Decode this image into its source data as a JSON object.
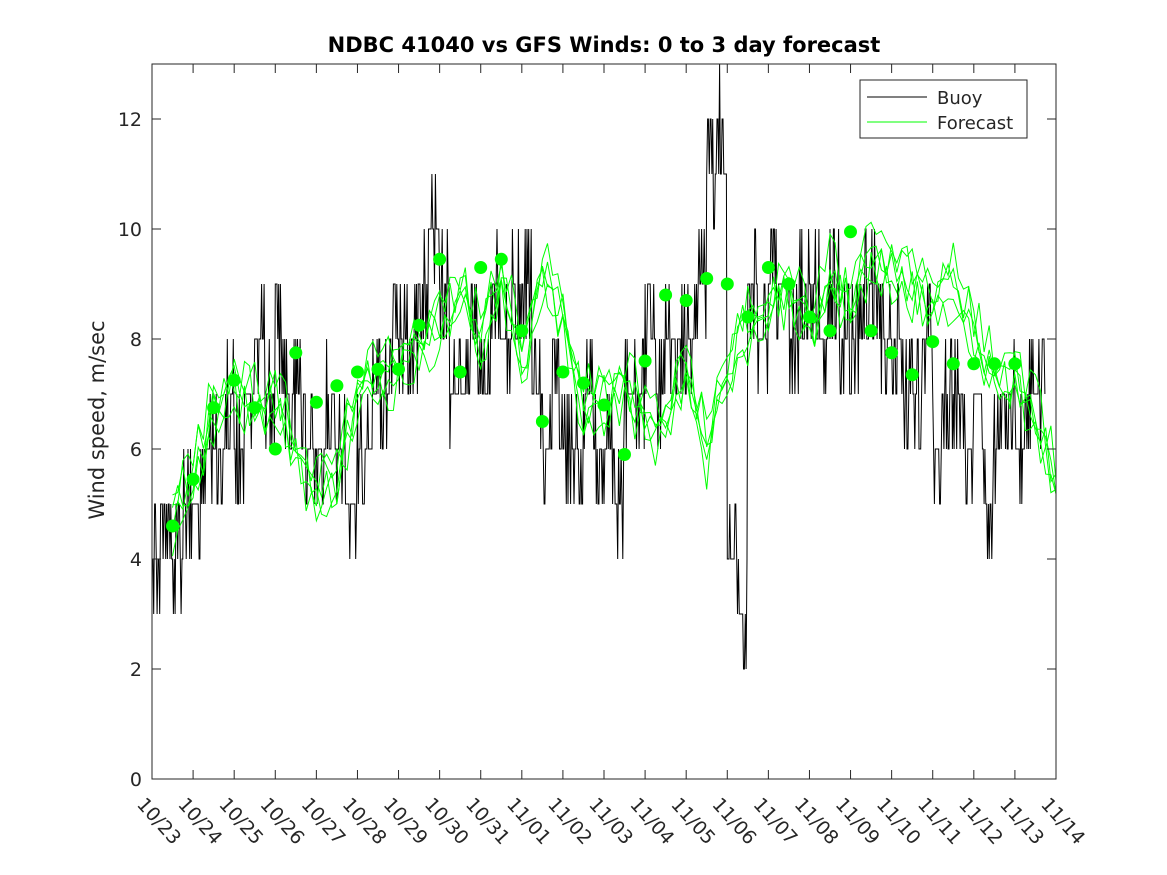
{
  "chart_data": {
    "type": "line",
    "title": "NDBC 41040 vs GFS Winds: 0 to 3 day forecast",
    "ylabel": "Wind speed, m/sec",
    "xlabel": "",
    "xlim": [
      0,
      22
    ],
    "ylim": [
      0,
      13
    ],
    "yticks": [
      0,
      2,
      4,
      6,
      8,
      10,
      12
    ],
    "xtick_labels": [
      "10/23",
      "10/24",
      "10/25",
      "10/26",
      "10/27",
      "10/28",
      "10/29",
      "10/30",
      "10/31",
      "11/01",
      "11/02",
      "11/03",
      "11/04",
      "11/05",
      "11/06",
      "11/07",
      "11/08",
      "11/09",
      "11/10",
      "11/11",
      "11/12",
      "11/13",
      "11/14"
    ],
    "legend": {
      "position": "top-right",
      "entries": [
        "Buoy",
        "Forecast"
      ]
    },
    "colors": {
      "buoy": "#000000",
      "forecast": "#00ff00",
      "axis": "#262626"
    },
    "series": [
      {
        "name": "Buoy",
        "x": [
          0.0,
          0.25,
          0.5,
          0.75,
          1.0,
          1.25,
          1.5,
          1.75,
          2.0,
          2.25,
          2.5,
          2.75,
          3.0,
          3.25,
          3.5,
          3.75,
          4.0,
          4.25,
          4.5,
          4.75,
          5.0,
          5.25,
          5.5,
          5.75,
          6.0,
          6.25,
          6.5,
          6.75,
          7.0,
          7.25,
          7.5,
          7.75,
          8.0,
          8.25,
          8.5,
          8.75,
          9.0,
          9.25,
          9.5,
          9.75,
          10.0,
          10.25,
          10.5,
          10.75,
          11.0,
          11.25,
          11.5,
          11.75,
          12.0,
          12.25,
          12.5,
          12.75,
          13.0,
          13.25,
          13.5,
          13.75,
          14.0,
          14.25,
          14.5,
          14.75,
          15.0,
          15.25,
          15.5,
          15.75,
          16.0,
          16.25,
          16.5,
          16.75,
          17.0,
          17.25,
          17.5,
          17.75,
          18.0,
          18.25,
          18.5,
          18.75,
          19.0,
          19.25,
          19.5,
          19.75,
          20.0,
          20.25,
          20.5,
          20.75,
          21.0,
          21.25,
          21.5
        ],
        "values": [
          4,
          5,
          4,
          5,
          5,
          6,
          6,
          7,
          6,
          7,
          8,
          7,
          8,
          7,
          7,
          6,
          6,
          7,
          6,
          5,
          6,
          7,
          7,
          8,
          8,
          8,
          9,
          10,
          9,
          7,
          8,
          8,
          7,
          9,
          8,
          9,
          9,
          7,
          6,
          7,
          6,
          6,
          7,
          6,
          6,
          5,
          7,
          7,
          8,
          7,
          8,
          8,
          8,
          9,
          11,
          12,
          4,
          3,
          9,
          8,
          9,
          9,
          8,
          9,
          9,
          8,
          9,
          8,
          8,
          9,
          9,
          8,
          8,
          7,
          7,
          8,
          6,
          7,
          7,
          6,
          7,
          5,
          6,
          7,
          6,
          7,
          7
        ]
      },
      {
        "name": "Forecast",
        "x": [
          0.5,
          1.0,
          1.5,
          2.0,
          2.5,
          3.0,
          3.5,
          4.0,
          4.5,
          5.0,
          5.5,
          6.0,
          6.5,
          7.0,
          7.5,
          8.0,
          8.5,
          9.0,
          9.5,
          10.0,
          10.5,
          11.0,
          11.5,
          12.0,
          12.5,
          13.0,
          13.5,
          14.0,
          14.5,
          15.0,
          15.5,
          16.0,
          16.5,
          17.0,
          17.5,
          18.0,
          18.5,
          19.0,
          19.5,
          20.0,
          20.5,
          21.0,
          21.5,
          22.0
        ],
        "values": [
          4.8,
          5.5,
          6.7,
          7.1,
          6.8,
          6.9,
          6.0,
          5.2,
          5.4,
          7.0,
          7.3,
          7.5,
          7.8,
          8.3,
          8.8,
          8.0,
          9.3,
          7.5,
          9.2,
          8.4,
          6.8,
          6.9,
          7.2,
          6.6,
          6.3,
          7.5,
          6.0,
          7.4,
          8.2,
          8.6,
          9.0,
          8.2,
          9.2,
          8.6,
          9.5,
          9.2,
          9.0,
          8.6,
          9.0,
          8.1,
          7.4,
          7.2,
          6.6,
          5.4
        ]
      },
      {
        "name": "Forecast (0-day markers)",
        "x": [
          0.5,
          1.0,
          1.5,
          2.0,
          2.5,
          3.0,
          3.5,
          4.0,
          4.5,
          5.0,
          5.5,
          6.0,
          6.5,
          7.0,
          7.5,
          8.0,
          8.5,
          9.0,
          9.5,
          10.0,
          10.5,
          11.0,
          11.5,
          12.0,
          12.5,
          13.0,
          13.5,
          14.0,
          14.5,
          15.0,
          15.5,
          16.0,
          16.5,
          17.0,
          17.5,
          18.0,
          18.5,
          19.0,
          19.5,
          20.0,
          20.5,
          21.0
        ],
        "values": [
          4.6,
          5.45,
          6.75,
          7.25,
          6.75,
          6.0,
          7.75,
          6.85,
          7.15,
          7.4,
          7.45,
          7.45,
          8.25,
          9.45,
          7.4,
          9.3,
          9.45,
          8.15,
          6.5,
          7.4,
          7.2,
          6.8,
          5.9,
          7.6,
          8.8,
          8.7,
          9.1,
          9.0,
          8.4,
          9.3,
          9.0,
          8.4,
          8.15,
          9.95,
          8.15,
          7.75,
          7.35,
          7.95,
          7.55,
          7.55,
          7.55,
          7.55
        ]
      }
    ]
  }
}
